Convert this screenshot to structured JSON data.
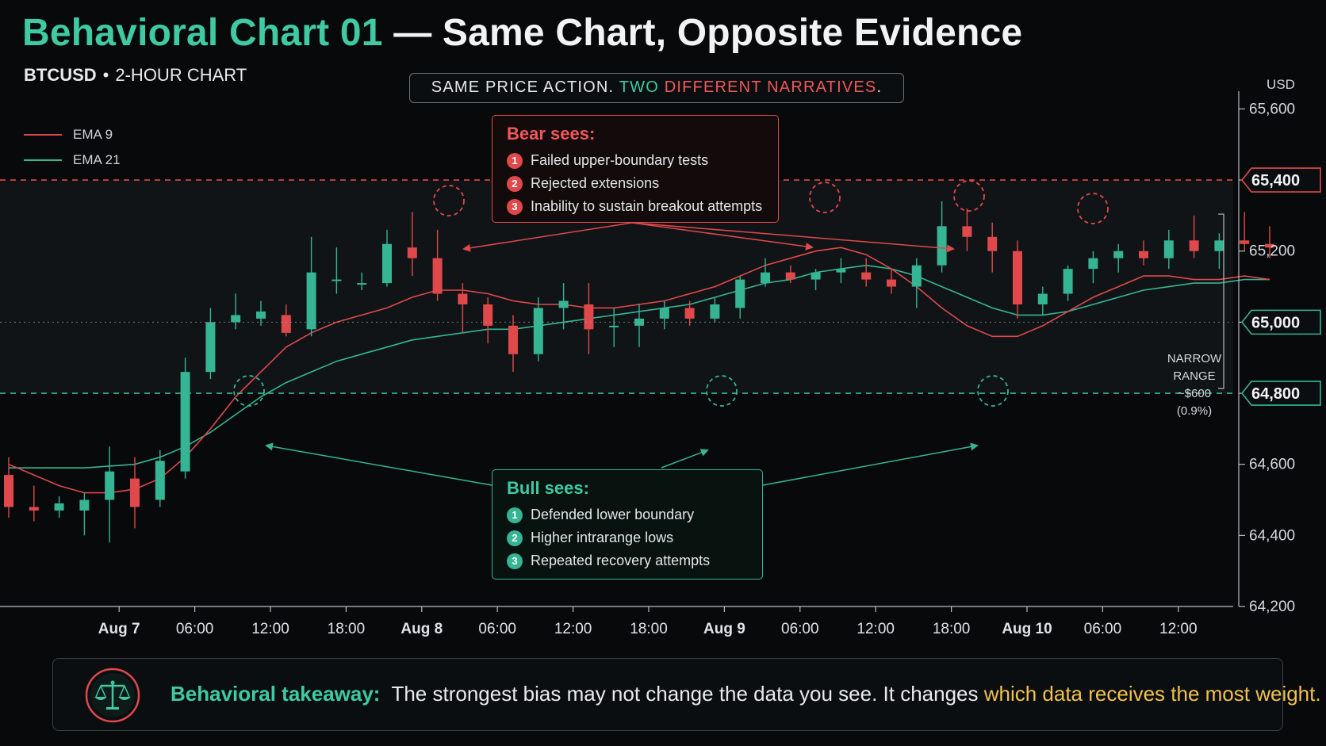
{
  "title": {
    "highlight": "Behavioral Chart 01",
    "rest": " — Same Chart, Opposite Evidence"
  },
  "subtitle": {
    "symbol": "BTCUSD",
    "separator": "•",
    "timeframe": "2-HOUR CHART"
  },
  "banner": {
    "part1": "SAME PRICE ACTION. ",
    "part2": "TWO ",
    "part3": "DIFFERENT NARRATIVES",
    "part4": "."
  },
  "legend": [
    {
      "name": "EMA 9",
      "color": "#e0494b"
    },
    {
      "name": "EMA 21",
      "color": "#35b593"
    }
  ],
  "bear_callout": {
    "heading": "Bear sees:",
    "items": [
      "Failed upper-boundary tests",
      "Rejected extensions",
      "Inability to sustain breakout attempts"
    ],
    "numbers": [
      "1",
      "2",
      "3"
    ]
  },
  "bull_callout": {
    "heading": "Bull sees:",
    "items": [
      "Defended lower boundary",
      "Higher intrarange lows",
      "Repeated recovery attempts"
    ],
    "numbers": [
      "1",
      "2",
      "3"
    ]
  },
  "narrow_range": {
    "line1": "NARROW",
    "line2": "RANGE",
    "line3": "~$600",
    "line4": "(0.9%)"
  },
  "footer": {
    "label": "Behavioral takeaway:",
    "text": "The strongest bias may not change the data you see. It changes ",
    "highlight": "which data receives the most weight."
  },
  "colors": {
    "up": "#35b593",
    "down": "#e0494b",
    "accent_green": "#3fcaa3",
    "accent_red": "#f0585a",
    "highlight": "#f2c14e"
  },
  "chart_data": {
    "type": "candlestick",
    "symbol": "BTCUSD",
    "interval_hours": 2,
    "y_unit": "USD",
    "ylim": [
      64200,
      65650
    ],
    "y_ticks": [
      64200,
      64400,
      64600,
      64800,
      65000,
      65200,
      65400,
      65600
    ],
    "y_tick_labels": [
      "64,200",
      "64,400",
      "64,600",
      "64,800",
      "65,000",
      "65,200",
      "65,400",
      "65,600"
    ],
    "x_ticks": [
      {
        "label": "Aug 7",
        "bar": 4,
        "bold": true
      },
      {
        "label": "06:00",
        "bar": 7
      },
      {
        "label": "12:00",
        "bar": 10
      },
      {
        "label": "18:00",
        "bar": 13
      },
      {
        "label": "Aug 8",
        "bar": 16,
        "bold": true
      },
      {
        "label": "06:00",
        "bar": 19
      },
      {
        "label": "12:00",
        "bar": 22
      },
      {
        "label": "18:00",
        "bar": 25
      },
      {
        "label": "Aug 9",
        "bar": 28,
        "bold": true
      },
      {
        "label": "06:00",
        "bar": 31
      },
      {
        "label": "12:00",
        "bar": 34
      },
      {
        "label": "18:00",
        "bar": 37
      },
      {
        "label": "Aug 10",
        "bar": 40,
        "bold": true
      },
      {
        "label": "06:00",
        "bar": 43
      },
      {
        "label": "12:00",
        "bar": 46
      }
    ],
    "levels": {
      "resistance": {
        "value": 65400,
        "label": "65,400"
      },
      "mid": {
        "value": 65000,
        "label": "65,000"
      },
      "support": {
        "value": 64800,
        "label": "64,800"
      }
    },
    "candles": [
      {
        "o": 64570,
        "h": 64620,
        "l": 64450,
        "c": 64480
      },
      {
        "o": 64480,
        "h": 64540,
        "l": 64440,
        "c": 64470
      },
      {
        "o": 64470,
        "h": 64510,
        "l": 64450,
        "c": 64490
      },
      {
        "o": 64470,
        "h": 64520,
        "l": 64400,
        "c": 64500
      },
      {
        "o": 64500,
        "h": 64650,
        "l": 64380,
        "c": 64580
      },
      {
        "o": 64560,
        "h": 64620,
        "l": 64420,
        "c": 64480
      },
      {
        "o": 64500,
        "h": 64640,
        "l": 64480,
        "c": 64610
      },
      {
        "o": 64580,
        "h": 64900,
        "l": 64560,
        "c": 64860
      },
      {
        "o": 64860,
        "h": 65040,
        "l": 64840,
        "c": 65000
      },
      {
        "o": 65000,
        "h": 65080,
        "l": 64980,
        "c": 65020
      },
      {
        "o": 65010,
        "h": 65060,
        "l": 64990,
        "c": 65030
      },
      {
        "o": 65020,
        "h": 65050,
        "l": 64960,
        "c": 64970
      },
      {
        "o": 64980,
        "h": 65240,
        "l": 64960,
        "c": 65140
      },
      {
        "o": 65120,
        "h": 65210,
        "l": 65080,
        "c": 65120
      },
      {
        "o": 65110,
        "h": 65140,
        "l": 65090,
        "c": 65110
      },
      {
        "o": 65110,
        "h": 65260,
        "l": 65100,
        "c": 65220
      },
      {
        "o": 65210,
        "h": 65310,
        "l": 65130,
        "c": 65180
      },
      {
        "o": 65180,
        "h": 65260,
        "l": 65060,
        "c": 65080
      },
      {
        "o": 65080,
        "h": 65110,
        "l": 64970,
        "c": 65050
      },
      {
        "o": 65050,
        "h": 65070,
        "l": 64940,
        "c": 64990
      },
      {
        "o": 64990,
        "h": 65020,
        "l": 64860,
        "c": 64910
      },
      {
        "o": 64910,
        "h": 65070,
        "l": 64890,
        "c": 65040
      },
      {
        "o": 65040,
        "h": 65110,
        "l": 64980,
        "c": 65060
      },
      {
        "o": 65050,
        "h": 65110,
        "l": 64910,
        "c": 64980
      },
      {
        "o": 64990,
        "h": 65040,
        "l": 64930,
        "c": 64990
      },
      {
        "o": 64990,
        "h": 65050,
        "l": 64930,
        "c": 65010
      },
      {
        "o": 65010,
        "h": 65060,
        "l": 64980,
        "c": 65040
      },
      {
        "o": 65040,
        "h": 65060,
        "l": 64990,
        "c": 65010
      },
      {
        "o": 65010,
        "h": 65070,
        "l": 65000,
        "c": 65050
      },
      {
        "o": 65040,
        "h": 65130,
        "l": 65010,
        "c": 65120
      },
      {
        "o": 65110,
        "h": 65180,
        "l": 65100,
        "c": 65140
      },
      {
        "o": 65140,
        "h": 65160,
        "l": 65110,
        "c": 65120
      },
      {
        "o": 65120,
        "h": 65150,
        "l": 65090,
        "c": 65140
      },
      {
        "o": 65140,
        "h": 65180,
        "l": 65110,
        "c": 65150
      },
      {
        "o": 65140,
        "h": 65180,
        "l": 65100,
        "c": 65120
      },
      {
        "o": 65120,
        "h": 65150,
        "l": 65080,
        "c": 65100
      },
      {
        "o": 65100,
        "h": 65180,
        "l": 65040,
        "c": 65160
      },
      {
        "o": 65160,
        "h": 65340,
        "l": 65140,
        "c": 65270
      },
      {
        "o": 65270,
        "h": 65320,
        "l": 65200,
        "c": 65240
      },
      {
        "o": 65240,
        "h": 65280,
        "l": 65140,
        "c": 65200
      },
      {
        "o": 65200,
        "h": 65230,
        "l": 65010,
        "c": 65050
      },
      {
        "o": 65050,
        "h": 65100,
        "l": 65020,
        "c": 65080
      },
      {
        "o": 65080,
        "h": 65160,
        "l": 65060,
        "c": 65150
      },
      {
        "o": 65150,
        "h": 65200,
        "l": 65110,
        "c": 65180
      },
      {
        "o": 65180,
        "h": 65220,
        "l": 65140,
        "c": 65200
      },
      {
        "o": 65200,
        "h": 65230,
        "l": 65160,
        "c": 65180
      },
      {
        "o": 65180,
        "h": 65260,
        "l": 65150,
        "c": 65230
      },
      {
        "o": 65230,
        "h": 65300,
        "l": 65180,
        "c": 65200
      },
      {
        "o": 65200,
        "h": 65250,
        "l": 65150,
        "c": 65230
      },
      {
        "o": 65230,
        "h": 65310,
        "l": 65200,
        "c": 65220
      },
      {
        "o": 65220,
        "h": 65270,
        "l": 65180,
        "c": 65210
      }
    ],
    "ema9": [
      64600,
      64570,
      64540,
      64520,
      64520,
      64530,
      64560,
      64620,
      64700,
      64790,
      64860,
      64930,
      64970,
      65000,
      65020,
      65040,
      65070,
      65090,
      65090,
      65080,
      65060,
      65050,
      65050,
      65040,
      65040,
      65050,
      65060,
      65080,
      65100,
      65130,
      65160,
      65180,
      65200,
      65210,
      65190,
      65150,
      65100,
      65040,
      64990,
      64960,
      64960,
      64990,
      65030,
      65070,
      65100,
      65130,
      65130,
      65120,
      65120,
      65130,
      65120
    ],
    "ema21": [
      64590,
      64590,
      64590,
      64590,
      64595,
      64600,
      64620,
      64650,
      64690,
      64740,
      64790,
      64830,
      64860,
      64890,
      64910,
      64930,
      64950,
      64960,
      64970,
      64980,
      64980,
      64990,
      65000,
      65010,
      65020,
      65030,
      65040,
      65050,
      65070,
      65090,
      65110,
      65120,
      65140,
      65150,
      65160,
      65150,
      65130,
      65100,
      65070,
      65040,
      65020,
      65020,
      65030,
      65050,
      65070,
      65090,
      65100,
      65110,
      65110,
      65120,
      65120
    ],
    "bear_marks": [
      {
        "bar": 0,
        "value": 65400
      },
      {
        "bar": 0,
        "value": 65400
      },
      {
        "bar": 0,
        "value": 65400
      },
      {
        "bar": 0,
        "value": 65400
      },
      {
        "bar": 0,
        "value": 65400
      }
    ],
    "bull_marks": [
      {
        "bar": 0,
        "value": 64800
      },
      {
        "bar": 0,
        "value": 64800
      },
      {
        "bar": 0,
        "value": 64800
      }
    ]
  }
}
